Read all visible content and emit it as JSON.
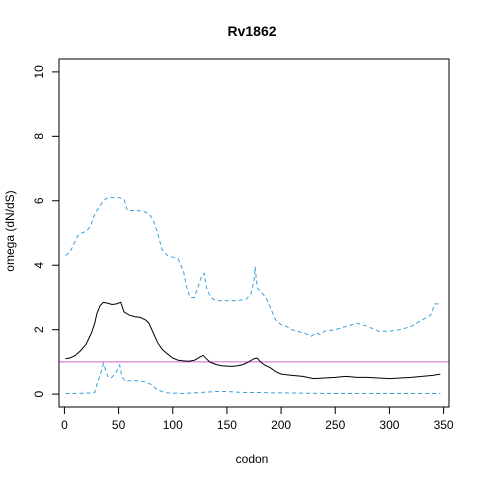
{
  "chart_data": {
    "type": "line",
    "title": "Rv1862",
    "xlabel": "codon",
    "ylabel": "omega (dN/dS)",
    "xlim": [
      -5,
      355
    ],
    "ylim": [
      -0.4,
      10.4
    ],
    "x_ticks": [
      0,
      50,
      100,
      150,
      200,
      250,
      300,
      350
    ],
    "y_ticks": [
      0,
      2,
      4,
      6,
      8,
      10
    ],
    "reference_line": {
      "y": 1,
      "color": "#d45fd4"
    },
    "grid": false,
    "series": [
      {
        "style": "solid",
        "color": "#000000",
        "points": [
          [
            1,
            1.1
          ],
          [
            5,
            1.12
          ],
          [
            10,
            1.2
          ],
          [
            15,
            1.35
          ],
          [
            20,
            1.55
          ],
          [
            25,
            1.9
          ],
          [
            28,
            2.2
          ],
          [
            30,
            2.5
          ],
          [
            33,
            2.75
          ],
          [
            36,
            2.85
          ],
          [
            40,
            2.82
          ],
          [
            44,
            2.78
          ],
          [
            48,
            2.8
          ],
          [
            52,
            2.85
          ],
          [
            55,
            2.55
          ],
          [
            60,
            2.45
          ],
          [
            65,
            2.4
          ],
          [
            70,
            2.38
          ],
          [
            75,
            2.3
          ],
          [
            78,
            2.2
          ],
          [
            82,
            1.9
          ],
          [
            86,
            1.6
          ],
          [
            90,
            1.4
          ],
          [
            95,
            1.25
          ],
          [
            100,
            1.12
          ],
          [
            105,
            1.05
          ],
          [
            110,
            1.03
          ],
          [
            115,
            1.02
          ],
          [
            120,
            1.05
          ],
          [
            125,
            1.15
          ],
          [
            128,
            1.2
          ],
          [
            131,
            1.1
          ],
          [
            134,
            1.0
          ],
          [
            140,
            0.92
          ],
          [
            145,
            0.88
          ],
          [
            150,
            0.87
          ],
          [
            155,
            0.86
          ],
          [
            160,
            0.88
          ],
          [
            165,
            0.92
          ],
          [
            170,
            1.0
          ],
          [
            175,
            1.1
          ],
          [
            178,
            1.12
          ],
          [
            181,
            1.0
          ],
          [
            185,
            0.9
          ],
          [
            190,
            0.82
          ],
          [
            195,
            0.7
          ],
          [
            200,
            0.62
          ],
          [
            210,
            0.58
          ],
          [
            220,
            0.55
          ],
          [
            230,
            0.48
          ],
          [
            240,
            0.5
          ],
          [
            250,
            0.52
          ],
          [
            260,
            0.55
          ],
          [
            270,
            0.52
          ],
          [
            280,
            0.52
          ],
          [
            290,
            0.5
          ],
          [
            300,
            0.48
          ],
          [
            310,
            0.5
          ],
          [
            320,
            0.52
          ],
          [
            330,
            0.55
          ],
          [
            340,
            0.58
          ],
          [
            347,
            0.62
          ]
        ]
      },
      {
        "style": "dashed",
        "color": "#3a9fd8",
        "points": [
          [
            1,
            4.3
          ],
          [
            5,
            4.4
          ],
          [
            8,
            4.6
          ],
          [
            12,
            4.9
          ],
          [
            16,
            5.0
          ],
          [
            20,
            5.05
          ],
          [
            24,
            5.2
          ],
          [
            27,
            5.5
          ],
          [
            30,
            5.7
          ],
          [
            33,
            5.85
          ],
          [
            36,
            6.0
          ],
          [
            40,
            6.1
          ],
          [
            45,
            6.1
          ],
          [
            50,
            6.1
          ],
          [
            55,
            6.05
          ],
          [
            58,
            5.7
          ],
          [
            65,
            5.7
          ],
          [
            72,
            5.68
          ],
          [
            78,
            5.6
          ],
          [
            82,
            5.4
          ],
          [
            86,
            5.0
          ],
          [
            90,
            4.5
          ],
          [
            95,
            4.3
          ],
          [
            100,
            4.25
          ],
          [
            105,
            4.2
          ],
          [
            110,
            3.8
          ],
          [
            113,
            3.3
          ],
          [
            116,
            3.0
          ],
          [
            120,
            3.0
          ],
          [
            124,
            3.4
          ],
          [
            127,
            3.7
          ],
          [
            129,
            3.75
          ],
          [
            131,
            3.3
          ],
          [
            135,
            3.0
          ],
          [
            140,
            2.9
          ],
          [
            150,
            2.9
          ],
          [
            160,
            2.9
          ],
          [
            168,
            2.95
          ],
          [
            172,
            3.1
          ],
          [
            175,
            3.5
          ],
          [
            176,
            3.95
          ],
          [
            178,
            3.3
          ],
          [
            182,
            3.15
          ],
          [
            186,
            3.0
          ],
          [
            190,
            2.7
          ],
          [
            195,
            2.3
          ],
          [
            200,
            2.15
          ],
          [
            205,
            2.1
          ],
          [
            210,
            2.0
          ],
          [
            215,
            1.95
          ],
          [
            220,
            1.9
          ],
          [
            225,
            1.85
          ],
          [
            228,
            1.8
          ],
          [
            232,
            1.9
          ],
          [
            236,
            1.85
          ],
          [
            240,
            1.95
          ],
          [
            250,
            2.0
          ],
          [
            260,
            2.1
          ],
          [
            270,
            2.2
          ],
          [
            280,
            2.1
          ],
          [
            290,
            1.95
          ],
          [
            300,
            1.95
          ],
          [
            310,
            2.0
          ],
          [
            320,
            2.1
          ],
          [
            330,
            2.3
          ],
          [
            338,
            2.45
          ],
          [
            342,
            2.8
          ],
          [
            347,
            2.8
          ]
        ]
      },
      {
        "style": "dashed",
        "color": "#3a9fd8",
        "points": [
          [
            1,
            0.02
          ],
          [
            10,
            0.02
          ],
          [
            20,
            0.03
          ],
          [
            28,
            0.05
          ],
          [
            30,
            0.3
          ],
          [
            34,
            0.7
          ],
          [
            36,
            0.95
          ],
          [
            38,
            0.75
          ],
          [
            40,
            0.55
          ],
          [
            43,
            0.5
          ],
          [
            46,
            0.6
          ],
          [
            49,
            0.75
          ],
          [
            51,
            0.9
          ],
          [
            53,
            0.55
          ],
          [
            56,
            0.4
          ],
          [
            60,
            0.42
          ],
          [
            65,
            0.42
          ],
          [
            70,
            0.4
          ],
          [
            75,
            0.38
          ],
          [
            80,
            0.3
          ],
          [
            85,
            0.15
          ],
          [
            90,
            0.08
          ],
          [
            95,
            0.04
          ],
          [
            100,
            0.03
          ],
          [
            110,
            0.02
          ],
          [
            120,
            0.04
          ],
          [
            130,
            0.06
          ],
          [
            140,
            0.08
          ],
          [
            150,
            0.08
          ],
          [
            160,
            0.06
          ],
          [
            170,
            0.05
          ],
          [
            180,
            0.05
          ],
          [
            190,
            0.04
          ],
          [
            200,
            0.04
          ],
          [
            220,
            0.03
          ],
          [
            240,
            0.02
          ],
          [
            260,
            0.02
          ],
          [
            280,
            0.02
          ],
          [
            300,
            0.02
          ],
          [
            320,
            0.02
          ],
          [
            347,
            0.02
          ]
        ]
      }
    ]
  }
}
